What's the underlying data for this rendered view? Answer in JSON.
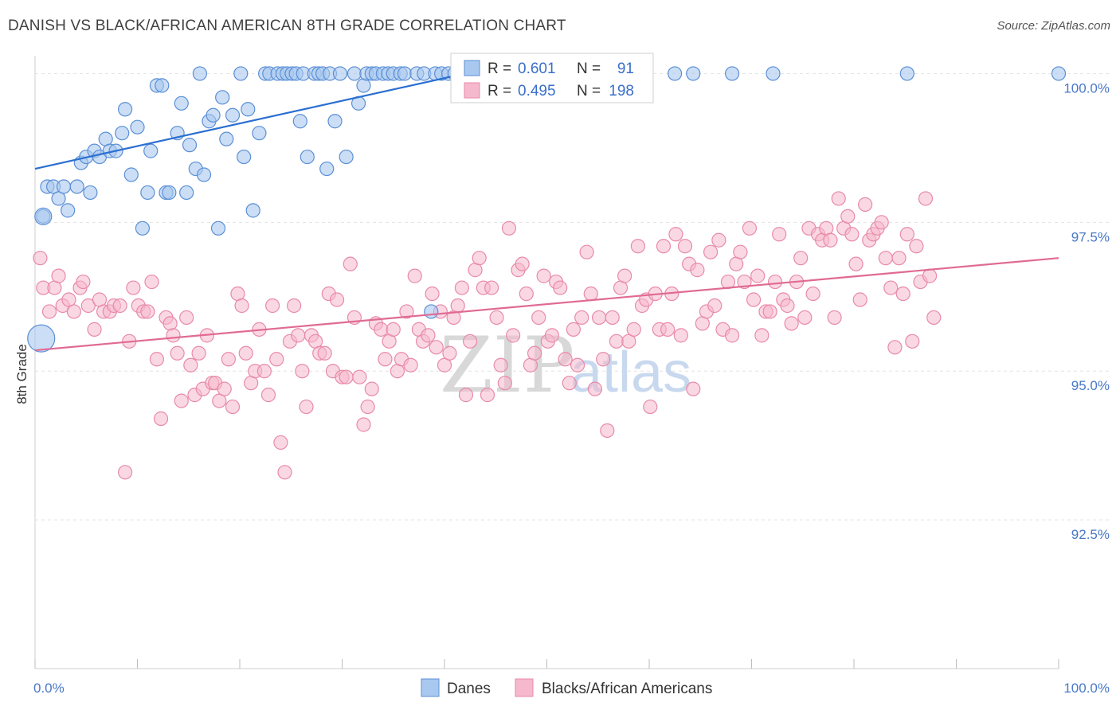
{
  "title": "DANISH VS BLACK/AFRICAN AMERICAN 8TH GRADE CORRELATION CHART",
  "source": "Source: ZipAtlas.com",
  "watermark": [
    "ZIP",
    "atlas"
  ],
  "legend": {
    "rows": [
      {
        "r_label": "R =",
        "r_value": "0.601",
        "n_label": "N =",
        "n_value": "91"
      },
      {
        "r_label": "R =",
        "r_value": "0.495",
        "n_label": "N =",
        "n_value": "198"
      }
    ]
  },
  "colors": {
    "blue_fill": "#a9c8ef",
    "blue_stroke": "#5b8fd6",
    "blue_line": "#2a6fd0",
    "pink_fill": "#f5b8cc",
    "pink_stroke": "#e88aa8",
    "pink_line": "#e06a94",
    "tick_text": "#4a78c8"
  },
  "chart_data": {
    "type": "scatter",
    "title": "DANISH VS BLACK/AFRICAN AMERICAN 8TH GRADE CORRELATION CHART",
    "xlabel": "",
    "ylabel": "8th Grade",
    "xlim": [
      0,
      100
    ],
    "ylim": [
      90.0,
      100.3
    ],
    "x_tick_labels": [
      "0.0%",
      "100.0%"
    ],
    "y_ticks": [
      100.0,
      97.5,
      95.0,
      92.5
    ],
    "y_tick_labels": [
      "100.0%",
      "97.5%",
      "95.0%",
      "92.5%"
    ],
    "grid": true,
    "legend_position": "bottom-center",
    "series": [
      {
        "name": "Danes",
        "color": "#a9c8ef",
        "r": 0.601,
        "n": 91,
        "trend": {
          "x": [
            0,
            42
          ],
          "y": [
            98.4,
            100.0
          ]
        },
        "points": [
          [
            0.8,
            97.6
          ],
          [
            1.2,
            98.1
          ],
          [
            1.8,
            98.1
          ],
          [
            2.3,
            97.9
          ],
          [
            2.8,
            98.1
          ],
          [
            3.2,
            97.7
          ],
          [
            4.1,
            98.1
          ],
          [
            5.4,
            98.0
          ],
          [
            4.5,
            98.5
          ],
          [
            5.0,
            98.6
          ],
          [
            5.8,
            98.7
          ],
          [
            6.3,
            98.6
          ],
          [
            6.9,
            98.9
          ],
          [
            7.3,
            98.7
          ],
          [
            7.9,
            98.7
          ],
          [
            8.5,
            99.0
          ],
          [
            8.8,
            99.4
          ],
          [
            9.4,
            98.3
          ],
          [
            10.0,
            99.1
          ],
          [
            10.5,
            97.4
          ],
          [
            11.0,
            98.0
          ],
          [
            11.3,
            98.7
          ],
          [
            11.9,
            99.8
          ],
          [
            12.4,
            99.8
          ],
          [
            12.8,
            98.0
          ],
          [
            13.1,
            98.0
          ],
          [
            13.9,
            99.0
          ],
          [
            14.3,
            99.5
          ],
          [
            14.8,
            98.0
          ],
          [
            15.1,
            98.8
          ],
          [
            15.7,
            98.4
          ],
          [
            16.1,
            100.0
          ],
          [
            16.5,
            98.3
          ],
          [
            17.0,
            99.2
          ],
          [
            17.4,
            99.3
          ],
          [
            17.9,
            97.4
          ],
          [
            18.3,
            99.6
          ],
          [
            18.7,
            98.9
          ],
          [
            19.3,
            99.3
          ],
          [
            20.1,
            100.0
          ],
          [
            20.4,
            98.6
          ],
          [
            20.8,
            99.4
          ],
          [
            21.3,
            97.7
          ],
          [
            21.9,
            99.0
          ],
          [
            22.5,
            100.0
          ],
          [
            22.9,
            100.0
          ],
          [
            23.7,
            100.0
          ],
          [
            24.2,
            100.0
          ],
          [
            24.6,
            100.0
          ],
          [
            25.1,
            100.0
          ],
          [
            25.5,
            100.0
          ],
          [
            25.9,
            99.2
          ],
          [
            26.2,
            100.0
          ],
          [
            26.6,
            98.6
          ],
          [
            27.3,
            100.0
          ],
          [
            27.7,
            100.0
          ],
          [
            28.1,
            100.0
          ],
          [
            28.5,
            98.4
          ],
          [
            28.8,
            100.0
          ],
          [
            29.3,
            99.2
          ],
          [
            29.8,
            100.0
          ],
          [
            30.4,
            98.6
          ],
          [
            31.2,
            100.0
          ],
          [
            31.6,
            99.5
          ],
          [
            32.1,
            99.8
          ],
          [
            32.4,
            100.0
          ],
          [
            32.9,
            100.0
          ],
          [
            33.3,
            100.0
          ],
          [
            34.0,
            100.0
          ],
          [
            34.5,
            100.0
          ],
          [
            35.0,
            100.0
          ],
          [
            35.7,
            100.0
          ],
          [
            36.1,
            100.0
          ],
          [
            37.3,
            100.0
          ],
          [
            38.0,
            100.0
          ],
          [
            38.7,
            96.0
          ],
          [
            39.1,
            100.0
          ],
          [
            39.7,
            100.0
          ],
          [
            40.4,
            100.0
          ],
          [
            41.0,
            100.0
          ],
          [
            48.0,
            100.0
          ],
          [
            50.8,
            100.0
          ],
          [
            52.9,
            100.0
          ],
          [
            56.3,
            100.0
          ],
          [
            58.0,
            100.0
          ],
          [
            62.5,
            100.0
          ],
          [
            64.3,
            100.0
          ],
          [
            68.1,
            100.0
          ],
          [
            72.1,
            100.0
          ],
          [
            85.2,
            100.0
          ],
          [
            100.0,
            100.0
          ]
        ]
      },
      {
        "name": "Blacks/African Americans",
        "color": "#f5b8cc",
        "r": 0.495,
        "n": 198,
        "trend": {
          "x": [
            0,
            100
          ],
          "y": [
            95.35,
            96.9
          ]
        },
        "points": [
          [
            0.5,
            96.9
          ],
          [
            0.8,
            96.4
          ],
          [
            1.4,
            96.0
          ],
          [
            1.9,
            96.4
          ],
          [
            2.3,
            96.6
          ],
          [
            2.7,
            96.1
          ],
          [
            3.3,
            96.2
          ],
          [
            3.8,
            96.0
          ],
          [
            4.4,
            96.4
          ],
          [
            4.7,
            96.5
          ],
          [
            5.2,
            96.1
          ],
          [
            5.8,
            95.7
          ],
          [
            6.3,
            96.2
          ],
          [
            6.7,
            96.0
          ],
          [
            7.3,
            96.0
          ],
          [
            7.7,
            96.1
          ],
          [
            8.3,
            96.1
          ],
          [
            8.8,
            93.3
          ],
          [
            9.2,
            95.5
          ],
          [
            9.6,
            96.4
          ],
          [
            10.1,
            96.1
          ],
          [
            10.6,
            96.0
          ],
          [
            11.0,
            96.0
          ],
          [
            11.4,
            96.5
          ],
          [
            11.9,
            95.2
          ],
          [
            12.3,
            94.2
          ],
          [
            12.8,
            95.9
          ],
          [
            13.2,
            95.8
          ],
          [
            13.5,
            95.6
          ],
          [
            13.9,
            95.3
          ],
          [
            14.3,
            94.5
          ],
          [
            14.8,
            95.9
          ],
          [
            15.2,
            95.1
          ],
          [
            15.6,
            94.6
          ],
          [
            16.0,
            95.3
          ],
          [
            16.4,
            94.7
          ],
          [
            16.8,
            95.6
          ],
          [
            17.3,
            94.8
          ],
          [
            17.6,
            94.8
          ],
          [
            18.0,
            94.5
          ],
          [
            18.5,
            94.7
          ],
          [
            18.9,
            95.2
          ],
          [
            19.3,
            94.4
          ],
          [
            19.8,
            96.3
          ],
          [
            20.2,
            96.1
          ],
          [
            20.6,
            95.3
          ],
          [
            21.1,
            94.8
          ],
          [
            21.5,
            95.0
          ],
          [
            21.9,
            95.7
          ],
          [
            22.4,
            95.0
          ],
          [
            22.8,
            94.6
          ],
          [
            23.2,
            96.1
          ],
          [
            23.6,
            95.2
          ],
          [
            24.0,
            93.8
          ],
          [
            24.4,
            93.3
          ],
          [
            24.9,
            95.5
          ],
          [
            25.3,
            96.1
          ],
          [
            25.7,
            95.6
          ],
          [
            26.1,
            95.0
          ],
          [
            26.5,
            94.4
          ],
          [
            27.0,
            95.6
          ],
          [
            27.4,
            95.5
          ],
          [
            27.8,
            95.3
          ],
          [
            28.3,
            95.3
          ],
          [
            28.7,
            96.3
          ],
          [
            29.1,
            95.0
          ],
          [
            29.5,
            96.2
          ],
          [
            30.0,
            94.9
          ],
          [
            30.4,
            94.9
          ],
          [
            30.8,
            96.8
          ],
          [
            31.2,
            95.9
          ],
          [
            31.7,
            94.9
          ],
          [
            32.1,
            94.1
          ],
          [
            32.5,
            94.4
          ],
          [
            32.9,
            94.7
          ],
          [
            33.3,
            95.8
          ],
          [
            33.8,
            95.7
          ],
          [
            34.2,
            95.2
          ],
          [
            34.6,
            95.5
          ],
          [
            35.0,
            95.7
          ],
          [
            35.4,
            95.0
          ],
          [
            35.8,
            95.2
          ],
          [
            36.3,
            96.0
          ],
          [
            36.7,
            95.1
          ],
          [
            37.1,
            96.6
          ],
          [
            37.5,
            95.7
          ],
          [
            37.9,
            95.5
          ],
          [
            38.4,
            95.6
          ],
          [
            38.8,
            96.3
          ],
          [
            39.2,
            95.4
          ],
          [
            39.6,
            96.0
          ],
          [
            40.0,
            95.1
          ],
          [
            40.5,
            95.3
          ],
          [
            40.9,
            95.9
          ],
          [
            41.3,
            96.1
          ],
          [
            41.7,
            96.4
          ],
          [
            42.1,
            94.6
          ],
          [
            42.5,
            95.5
          ],
          [
            43.0,
            96.7
          ],
          [
            43.4,
            96.9
          ],
          [
            43.8,
            96.4
          ],
          [
            44.2,
            94.6
          ],
          [
            44.6,
            96.4
          ],
          [
            45.1,
            95.9
          ],
          [
            45.5,
            95.1
          ],
          [
            45.9,
            94.8
          ],
          [
            46.3,
            97.4
          ],
          [
            46.7,
            95.6
          ],
          [
            47.2,
            96.7
          ],
          [
            47.6,
            96.8
          ],
          [
            48.0,
            96.3
          ],
          [
            48.4,
            95.1
          ],
          [
            48.8,
            95.3
          ],
          [
            49.2,
            95.9
          ],
          [
            49.7,
            96.6
          ],
          [
            50.1,
            95.5
          ],
          [
            50.5,
            95.6
          ],
          [
            50.9,
            96.5
          ],
          [
            51.3,
            96.4
          ],
          [
            51.8,
            95.2
          ],
          [
            52.2,
            94.8
          ],
          [
            52.6,
            95.7
          ],
          [
            53.0,
            95.1
          ],
          [
            53.4,
            95.9
          ],
          [
            53.9,
            97.0
          ],
          [
            54.3,
            96.3
          ],
          [
            54.7,
            94.7
          ],
          [
            55.1,
            95.9
          ],
          [
            55.5,
            95.2
          ],
          [
            55.9,
            94.0
          ],
          [
            56.4,
            95.9
          ],
          [
            56.8,
            95.5
          ],
          [
            57.2,
            96.4
          ],
          [
            57.6,
            96.6
          ],
          [
            58.0,
            95.5
          ],
          [
            58.5,
            95.7
          ],
          [
            58.9,
            97.1
          ],
          [
            59.3,
            96.1
          ],
          [
            59.7,
            96.2
          ],
          [
            60.1,
            94.4
          ],
          [
            60.6,
            96.3
          ],
          [
            61.0,
            95.7
          ],
          [
            61.4,
            97.1
          ],
          [
            61.8,
            95.7
          ],
          [
            62.2,
            96.3
          ],
          [
            62.6,
            97.3
          ],
          [
            63.1,
            95.6
          ],
          [
            63.5,
            97.1
          ],
          [
            63.9,
            96.8
          ],
          [
            64.3,
            94.7
          ],
          [
            64.7,
            96.7
          ],
          [
            65.2,
            95.8
          ],
          [
            65.6,
            96.0
          ],
          [
            66.0,
            97.0
          ],
          [
            66.4,
            96.1
          ],
          [
            66.8,
            97.2
          ],
          [
            67.2,
            95.7
          ],
          [
            67.7,
            96.5
          ],
          [
            68.1,
            95.6
          ],
          [
            68.5,
            96.8
          ],
          [
            68.9,
            97.0
          ],
          [
            69.3,
            96.5
          ],
          [
            69.8,
            97.4
          ],
          [
            70.2,
            96.2
          ],
          [
            70.6,
            96.6
          ],
          [
            71.0,
            95.6
          ],
          [
            71.4,
            96.0
          ],
          [
            71.8,
            96.0
          ],
          [
            72.3,
            96.5
          ],
          [
            72.7,
            97.3
          ],
          [
            73.1,
            96.2
          ],
          [
            73.5,
            96.1
          ],
          [
            73.9,
            95.8
          ],
          [
            74.4,
            96.5
          ],
          [
            74.8,
            96.9
          ],
          [
            75.2,
            95.9
          ],
          [
            75.6,
            97.4
          ],
          [
            76.0,
            96.3
          ],
          [
            76.5,
            97.3
          ],
          [
            76.9,
            97.2
          ],
          [
            77.3,
            97.4
          ],
          [
            77.7,
            97.2
          ],
          [
            78.1,
            95.9
          ],
          [
            78.5,
            97.9
          ],
          [
            79.0,
            97.4
          ],
          [
            79.4,
            97.6
          ],
          [
            79.8,
            97.3
          ],
          [
            80.2,
            96.8
          ],
          [
            80.6,
            96.2
          ],
          [
            81.1,
            97.8
          ],
          [
            81.5,
            97.2
          ],
          [
            81.9,
            97.3
          ],
          [
            82.3,
            97.4
          ],
          [
            82.7,
            97.5
          ],
          [
            83.1,
            96.9
          ],
          [
            83.6,
            96.4
          ],
          [
            84.0,
            95.4
          ],
          [
            84.4,
            96.9
          ],
          [
            84.8,
            96.3
          ],
          [
            85.2,
            97.3
          ],
          [
            85.7,
            95.5
          ],
          [
            86.1,
            97.1
          ],
          [
            86.5,
            96.5
          ],
          [
            87.0,
            97.9
          ],
          [
            87.4,
            96.6
          ],
          [
            87.8,
            95.9
          ]
        ]
      }
    ]
  },
  "bottom_legend": [
    "Danes",
    "Blacks/African Americans"
  ]
}
